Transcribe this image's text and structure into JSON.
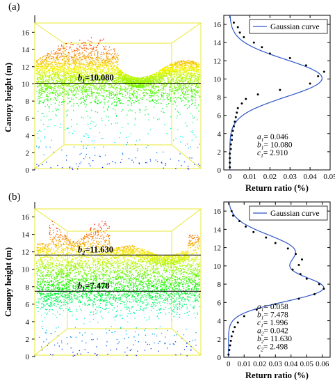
{
  "panels": [
    {
      "panel_label": "(a)",
      "y_axis_label": "Canopy height (m)",
      "lidar_annotations": [
        {
          "name": "b1-line",
          "text_symbol": "b",
          "text_sub": "1",
          "text_value": "=10.080",
          "height": 10.08
        }
      ]
    },
    {
      "panel_label": "(b)",
      "y_axis_label": "Canopy height (m)",
      "lidar_annotations": [
        {
          "name": "b2-line",
          "text_symbol": "b",
          "text_sub": "2",
          "text_value": "=11.630",
          "height": 11.63
        },
        {
          "name": "b1-line",
          "text_symbol": "b",
          "text_sub": "1",
          "text_value": "=7.478",
          "height": 7.478
        }
      ]
    }
  ],
  "chart_data": [
    {
      "type": "scatter",
      "panel": "(a)",
      "view": "lidar point cloud",
      "ylabel": "Canopy height (m)",
      "ylim": [
        0,
        17
      ],
      "yticks": [
        0,
        2,
        4,
        6,
        8,
        10,
        12,
        14,
        16
      ],
      "colormap": "height (blue low → red high)",
      "reference_lines": [
        10.08
      ]
    },
    {
      "type": "scatter",
      "panel": "(a)",
      "view": "vertical return profile",
      "xlabel": "Return ratio (%)",
      "xlim": [
        -0.003,
        0.05
      ],
      "ylim": [
        0,
        17
      ],
      "xticks": [
        "0",
        "0.01",
        "0.02",
        "0.03",
        "0.04",
        "0.05"
      ],
      "yticks": [
        0,
        2,
        4,
        6,
        8,
        10,
        12,
        14,
        16
      ],
      "legend": {
        "label": "Gaussian curve",
        "placement": "top-right"
      },
      "gaussians": [
        {
          "a": 0.046,
          "b": 10.08,
          "c": 2.91
        }
      ],
      "params_text": [
        {
          "sym": "a",
          "sub": "1",
          "val": "= 0.046"
        },
        {
          "sym": "b",
          "sub": "1",
          "val": "= 10.080"
        },
        {
          "sym": "c",
          "sub": "1",
          "val": "= 2.910"
        }
      ],
      "points": [
        {
          "x": 0.0,
          "y": 0.3
        },
        {
          "x": 0.0,
          "y": 0.8
        },
        {
          "x": 0.0,
          "y": 1.3
        },
        {
          "x": 0.0,
          "y": 1.8
        },
        {
          "x": 0.0005,
          "y": 2.3
        },
        {
          "x": 0.0005,
          "y": 2.8
        },
        {
          "x": 0.001,
          "y": 3.3
        },
        {
          "x": 0.001,
          "y": 3.8
        },
        {
          "x": 0.0015,
          "y": 4.3
        },
        {
          "x": 0.002,
          "y": 4.8
        },
        {
          "x": 0.0025,
          "y": 5.3
        },
        {
          "x": 0.003,
          "y": 5.8
        },
        {
          "x": 0.0035,
          "y": 6.3
        },
        {
          "x": 0.004,
          "y": 6.8
        },
        {
          "x": 0.006,
          "y": 7.3
        },
        {
          "x": 0.008,
          "y": 7.8
        },
        {
          "x": 0.014,
          "y": 8.3
        },
        {
          "x": 0.025,
          "y": 8.8
        },
        {
          "x": 0.04,
          "y": 9.5
        },
        {
          "x": 0.044,
          "y": 10.3
        },
        {
          "x": 0.047,
          "y": 10.8
        },
        {
          "x": 0.038,
          "y": 11.5
        },
        {
          "x": 0.03,
          "y": 12.3
        },
        {
          "x": 0.02,
          "y": 12.8
        },
        {
          "x": 0.016,
          "y": 13.5
        },
        {
          "x": 0.012,
          "y": 14.0
        },
        {
          "x": 0.007,
          "y": 14.6
        },
        {
          "x": 0.005,
          "y": 15.1
        },
        {
          "x": 0.004,
          "y": 15.7
        },
        {
          "x": 0.002,
          "y": 16.2
        }
      ]
    },
    {
      "type": "scatter",
      "panel": "(b)",
      "view": "lidar point cloud",
      "ylabel": "Canopy height (m)",
      "ylim": [
        0,
        17
      ],
      "yticks": [
        0,
        2,
        4,
        6,
        8,
        10,
        12,
        14,
        16
      ],
      "colormap": "height (blue low → red high)",
      "reference_lines": [
        11.63,
        7.478
      ]
    },
    {
      "type": "scatter",
      "panel": "(b)",
      "view": "vertical return profile",
      "xlabel": "Return ratio (%)",
      "xlim": [
        -0.003,
        0.065
      ],
      "ylim": [
        0,
        17
      ],
      "xticks": [
        "0",
        "0.01",
        "0.02",
        "0.03",
        "0.04",
        "0.05",
        "0.06"
      ],
      "yticks": [
        0,
        2,
        4,
        6,
        8,
        10,
        12,
        14,
        16
      ],
      "legend": {
        "label": "Gaussian curve",
        "placement": "top-right"
      },
      "gaussians": [
        {
          "a": 0.058,
          "b": 7.478,
          "c": 1.996
        },
        {
          "a": 0.042,
          "b": 11.63,
          "c": 2.498
        }
      ],
      "params_text": [
        {
          "sym": "a",
          "sub": "1",
          "val": "= 0.058"
        },
        {
          "sym": "b",
          "sub": "1",
          "val": "= 7.478"
        },
        {
          "sym": "c",
          "sub": "1",
          "val": "= 1.996"
        },
        {
          "sym": "a",
          "sub": "2",
          "val": "= 0.042"
        },
        {
          "sym": "b",
          "sub": "2",
          "val": "= 11.630"
        },
        {
          "sym": "c",
          "sub": "2",
          "val": "= 2.498"
        }
      ],
      "points": [
        {
          "x": 0.0,
          "y": 0.3
        },
        {
          "x": 0.0005,
          "y": 0.8
        },
        {
          "x": 0.001,
          "y": 1.3
        },
        {
          "x": 0.0015,
          "y": 1.8
        },
        {
          "x": 0.002,
          "y": 2.3
        },
        {
          "x": 0.003,
          "y": 2.8
        },
        {
          "x": 0.004,
          "y": 3.3
        },
        {
          "x": 0.006,
          "y": 3.8
        },
        {
          "x": 0.01,
          "y": 4.5
        },
        {
          "x": 0.018,
          "y": 5.2
        },
        {
          "x": 0.03,
          "y": 5.8
        },
        {
          "x": 0.045,
          "y": 6.4
        },
        {
          "x": 0.055,
          "y": 6.9
        },
        {
          "x": 0.061,
          "y": 7.5
        },
        {
          "x": 0.058,
          "y": 8.0
        },
        {
          "x": 0.05,
          "y": 8.6
        },
        {
          "x": 0.046,
          "y": 9.1
        },
        {
          "x": 0.041,
          "y": 9.6
        },
        {
          "x": 0.045,
          "y": 10.1
        },
        {
          "x": 0.047,
          "y": 10.7
        },
        {
          "x": 0.043,
          "y": 11.3
        },
        {
          "x": 0.038,
          "y": 11.9
        },
        {
          "x": 0.03,
          "y": 12.5
        },
        {
          "x": 0.024,
          "y": 13.1
        },
        {
          "x": 0.016,
          "y": 13.7
        },
        {
          "x": 0.011,
          "y": 14.3
        },
        {
          "x": 0.007,
          "y": 14.9
        },
        {
          "x": 0.003,
          "y": 15.5
        },
        {
          "x": 0.002,
          "y": 16.0
        }
      ]
    }
  ]
}
